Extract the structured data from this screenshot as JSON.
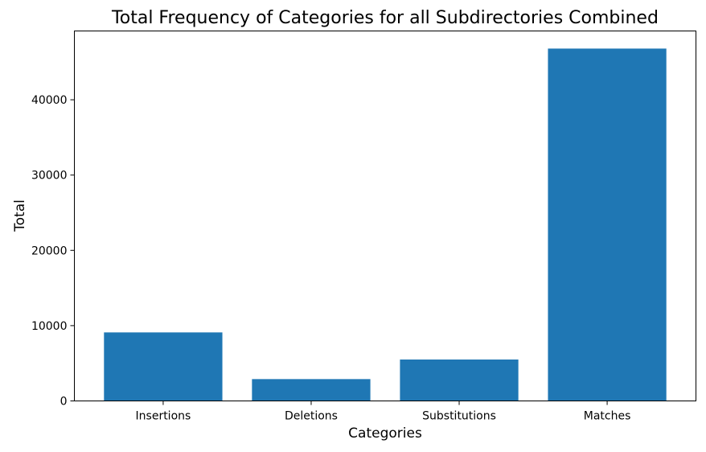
{
  "chart_data": {
    "type": "bar",
    "title": "Total Frequency of Categories for all Subdirectories Combined",
    "xlabel": "Categories",
    "ylabel": "Total",
    "categories": [
      "Insertions",
      "Deletions",
      "Substitutions",
      "Matches"
    ],
    "values": [
      9100,
      2900,
      5500,
      46800
    ],
    "ylim": [
      0,
      49140
    ],
    "yticks": [
      0,
      10000,
      20000,
      30000,
      40000
    ],
    "grid": false,
    "bar_color": "#1f77b4"
  }
}
